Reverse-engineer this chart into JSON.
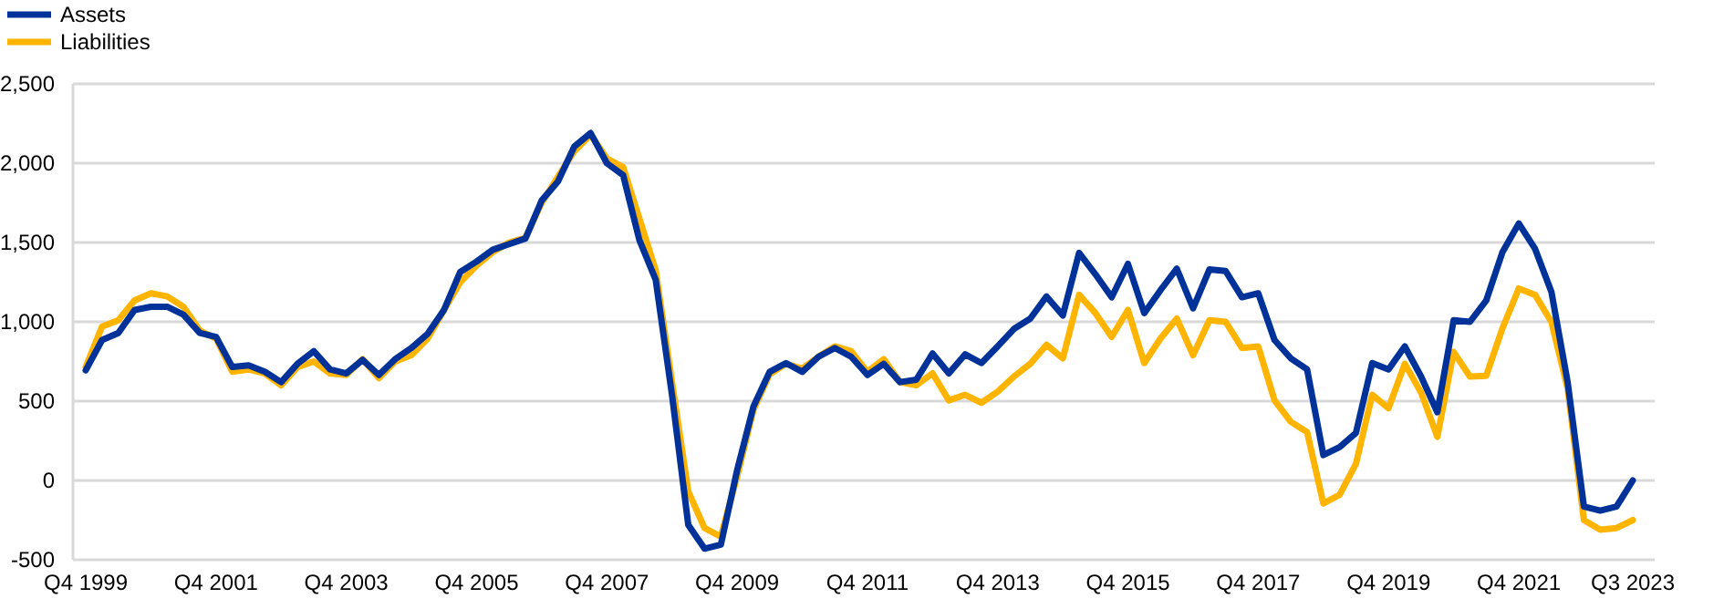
{
  "chart_data": {
    "type": "line",
    "categories": [
      "Q4 1999",
      null,
      null,
      null,
      null,
      null,
      null,
      null,
      "Q4 2001",
      null,
      null,
      null,
      null,
      null,
      null,
      null,
      "Q4 2003",
      null,
      null,
      null,
      null,
      null,
      null,
      null,
      "Q4 2005",
      null,
      null,
      null,
      null,
      null,
      null,
      null,
      "Q4 2007",
      null,
      null,
      null,
      null,
      null,
      null,
      null,
      "Q4 2009",
      null,
      null,
      null,
      null,
      null,
      null,
      null,
      "Q4 2011",
      null,
      null,
      null,
      null,
      null,
      null,
      null,
      "Q4 2013",
      null,
      null,
      null,
      null,
      null,
      null,
      null,
      "Q4 2015",
      null,
      null,
      null,
      null,
      null,
      null,
      null,
      "Q4 2017",
      null,
      null,
      null,
      null,
      null,
      null,
      null,
      "Q4 2019",
      null,
      null,
      null,
      null,
      null,
      null,
      null,
      "Q4 2021",
      null,
      null,
      null,
      null,
      null,
      null,
      "Q3 2023"
    ],
    "series": [
      {
        "name": "Assets",
        "color": "#003299",
        "values": [
          695,
          885,
          930,
          1075,
          1095,
          1095,
          1045,
          930,
          905,
          715,
          725,
          685,
          620,
          735,
          815,
          700,
          675,
          760,
          665,
          765,
          835,
          925,
          1075,
          1315,
          1380,
          1455,
          1490,
          1525,
          1765,
          1885,
          2105,
          2190,
          2000,
          1925,
          1515,
          1265,
          540,
          -280,
          -430,
          -405,
          65,
          465,
          685,
          740,
          685,
          780,
          835,
          780,
          665,
          735,
          620,
          635,
          800,
          675,
          795,
          740,
          845,
          955,
          1020,
          1160,
          1040,
          1435,
          1300,
          1155,
          1365,
          1055,
          1200,
          1335,
          1085,
          1330,
          1320,
          1155,
          1180,
          885,
          770,
          700,
          160,
          210,
          300,
          740,
          700,
          845,
          655,
          430,
          1010,
          1000,
          1135,
          1440,
          1620,
          1460,
          1190,
          620,
          -165,
          -190,
          -165,
          0
        ]
      },
      {
        "name": "Liabilities",
        "color": "#ffb400",
        "values": [
          715,
          970,
          1010,
          1135,
          1180,
          1160,
          1095,
          945,
          895,
          685,
          700,
          675,
          600,
          715,
          750,
          675,
          665,
          765,
          645,
          750,
          790,
          895,
          1075,
          1250,
          1355,
          1440,
          1500,
          1530,
          1750,
          1915,
          2075,
          2180,
          2030,
          1975,
          1650,
          1325,
          620,
          -70,
          -300,
          -355,
          25,
          445,
          670,
          735,
          705,
          780,
          845,
          815,
          685,
          765,
          620,
          600,
          675,
          505,
          540,
          490,
          560,
          655,
          735,
          855,
          770,
          1170,
          1055,
          905,
          1075,
          740,
          895,
          1020,
          790,
          1010,
          1000,
          835,
          845,
          505,
          370,
          305,
          -145,
          -90,
          105,
          540,
          455,
          735,
          555,
          275,
          810,
          655,
          660,
          960,
          1210,
          1170,
          1000,
          580,
          -250,
          -310,
          -300,
          -250
        ]
      }
    ],
    "ylim": [
      -500,
      2500
    ],
    "yticks": [
      -500,
      0,
      500,
      {
        "value": 1000,
        "label": "1,000"
      },
      {
        "value": 1500,
        "label": "1,500"
      },
      {
        "value": 2000,
        "label": "2,000"
      },
      {
        "value": 2500,
        "label": "2,500"
      }
    ],
    "grid": "y",
    "legend": "top left",
    "marker": "none",
    "line_style": "solid"
  }
}
